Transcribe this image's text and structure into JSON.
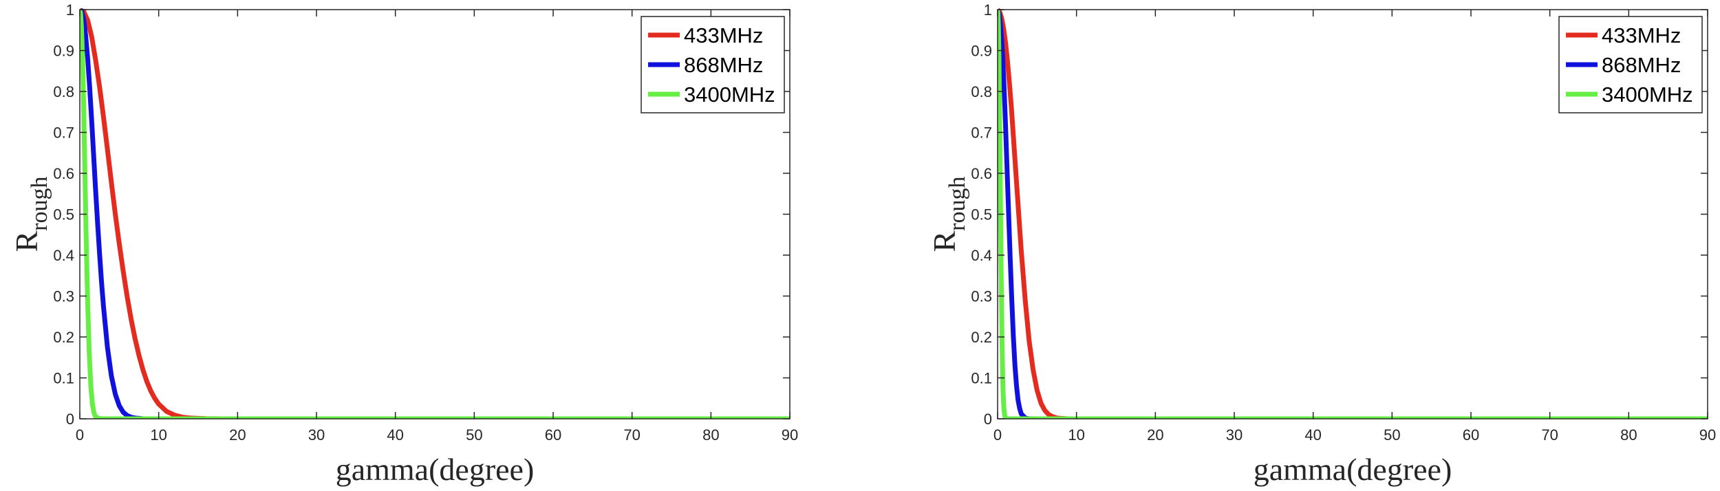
{
  "chart_data": [
    {
      "type": "line",
      "title": "",
      "xlabel": "gamma(degree)",
      "ylabel": "R",
      "ylabel_subscript": "rough",
      "xlim": [
        0,
        90
      ],
      "ylim": [
        0,
        1
      ],
      "xticks": [
        "0",
        "10",
        "20",
        "30",
        "40",
        "50",
        "60",
        "70",
        "80",
        "90"
      ],
      "yticks": [
        "0",
        "0.1",
        "0.2",
        "0.3",
        "0.4",
        "0.5",
        "0.6",
        "0.7",
        "0.8",
        "0.9",
        "1"
      ],
      "grid": false,
      "legend_position": "top-right",
      "series": [
        {
          "name": "433MHz",
          "color": "#e32b1f",
          "x": [
            0,
            0.5,
            1,
            1.5,
            2,
            2.5,
            3,
            3.5,
            4,
            4.5,
            5,
            5.5,
            6,
            6.5,
            7,
            7.5,
            8,
            8.5,
            9,
            9.5,
            10,
            11,
            12,
            13,
            14,
            15,
            16,
            18,
            20,
            25,
            30,
            40,
            50,
            60,
            70,
            80,
            90
          ],
          "y": [
            1,
            0.995,
            0.974,
            0.934,
            0.877,
            0.812,
            0.738,
            0.659,
            0.578,
            0.5,
            0.428,
            0.361,
            0.299,
            0.244,
            0.196,
            0.155,
            0.12,
            0.091,
            0.068,
            0.05,
            0.036,
            0.018,
            0.009,
            0.004,
            0.002,
            0.001,
            0.0004,
            0.0001,
            0,
            0,
            0,
            0,
            0,
            0,
            0,
            0,
            0
          ]
        },
        {
          "name": "868MHz",
          "color": "#1111dd",
          "x": [
            0,
            0.25,
            0.5,
            0.75,
            1,
            1.25,
            1.5,
            1.75,
            2,
            2.25,
            2.5,
            2.75,
            3,
            3.5,
            4,
            4.5,
            5,
            5.5,
            6,
            6.5,
            7,
            8,
            9,
            10,
            15,
            20,
            30,
            40,
            50,
            60,
            70,
            80,
            90
          ],
          "y": [
            1,
            0.995,
            0.975,
            0.935,
            0.88,
            0.81,
            0.73,
            0.645,
            0.56,
            0.48,
            0.405,
            0.335,
            0.275,
            0.175,
            0.105,
            0.06,
            0.032,
            0.016,
            0.008,
            0.004,
            0.002,
            0.0003,
            0,
            0,
            0,
            0,
            0,
            0,
            0,
            0,
            0,
            0,
            0
          ]
        },
        {
          "name": "3400MHz",
          "color": "#66ee44",
          "x": [
            0,
            0.1,
            0.2,
            0.3,
            0.4,
            0.5,
            0.6,
            0.7,
            0.8,
            0.9,
            1,
            1.2,
            1.4,
            1.6,
            1.8,
            2,
            2.5,
            3,
            5,
            10,
            20,
            30,
            40,
            50,
            60,
            70,
            80,
            90
          ],
          "y": [
            1,
            0.99,
            0.96,
            0.91,
            0.84,
            0.75,
            0.65,
            0.55,
            0.45,
            0.36,
            0.28,
            0.16,
            0.08,
            0.035,
            0.014,
            0.005,
            0.0005,
            0,
            0,
            0,
            0,
            0,
            0,
            0,
            0,
            0,
            0,
            0
          ]
        }
      ]
    },
    {
      "type": "line",
      "title": "",
      "xlabel": "gamma(degree)",
      "ylabel": "R",
      "ylabel_subscript": "rough",
      "xlim": [
        0,
        90
      ],
      "ylim": [
        0,
        1
      ],
      "xticks": [
        "0",
        "10",
        "20",
        "30",
        "40",
        "50",
        "60",
        "70",
        "80",
        "90"
      ],
      "yticks": [
        "0",
        "0.1",
        "0.2",
        "0.3",
        "0.4",
        "0.5",
        "0.6",
        "0.7",
        "0.8",
        "0.9",
        "1"
      ],
      "grid": false,
      "legend_position": "top-right",
      "series": [
        {
          "name": "433MHz",
          "color": "#e32b1f",
          "x": [
            0,
            0.25,
            0.5,
            0.75,
            1,
            1.25,
            1.5,
            1.75,
            2,
            2.25,
            2.5,
            2.75,
            3,
            3.5,
            4,
            4.5,
            5,
            5.5,
            6,
            6.5,
            7,
            7.5,
            8,
            9,
            10,
            15,
            20,
            30,
            40,
            50,
            60,
            70,
            80,
            90
          ],
          "y": [
            1,
            0.995,
            0.98,
            0.955,
            0.92,
            0.875,
            0.82,
            0.76,
            0.69,
            0.62,
            0.55,
            0.48,
            0.41,
            0.29,
            0.19,
            0.12,
            0.07,
            0.038,
            0.02,
            0.01,
            0.005,
            0.002,
            0.001,
            0.0001,
            0,
            0,
            0,
            0,
            0,
            0,
            0,
            0,
            0,
            0
          ]
        },
        {
          "name": "868MHz",
          "color": "#1111dd",
          "x": [
            0,
            0.2,
            0.4,
            0.6,
            0.8,
            1,
            1.2,
            1.4,
            1.6,
            1.8,
            2,
            2.2,
            2.4,
            2.6,
            2.8,
            3,
            3.5,
            4,
            5,
            10,
            20,
            30,
            40,
            50,
            60,
            70,
            80,
            90
          ],
          "y": [
            1,
            0.99,
            0.955,
            0.9,
            0.82,
            0.72,
            0.61,
            0.5,
            0.39,
            0.29,
            0.2,
            0.13,
            0.08,
            0.045,
            0.025,
            0.012,
            0.002,
            0.0002,
            0,
            0,
            0,
            0,
            0,
            0,
            0,
            0,
            0,
            0
          ]
        },
        {
          "name": "3400MHz",
          "color": "#66ee44",
          "x": [
            0,
            0.05,
            0.1,
            0.15,
            0.2,
            0.25,
            0.3,
            0.35,
            0.4,
            0.45,
            0.5,
            0.55,
            0.6,
            0.65,
            0.7,
            0.8,
            0.9,
            1,
            1.2,
            1.5,
            2,
            5,
            10,
            20,
            30,
            40,
            50,
            60,
            70,
            80,
            90
          ],
          "y": [
            1,
            0.99,
            0.96,
            0.91,
            0.84,
            0.75,
            0.65,
            0.55,
            0.45,
            0.36,
            0.28,
            0.21,
            0.15,
            0.1,
            0.065,
            0.025,
            0.008,
            0.002,
            0,
            0,
            0,
            0,
            0,
            0,
            0,
            0,
            0,
            0,
            0,
            0,
            0
          ]
        }
      ]
    }
  ]
}
